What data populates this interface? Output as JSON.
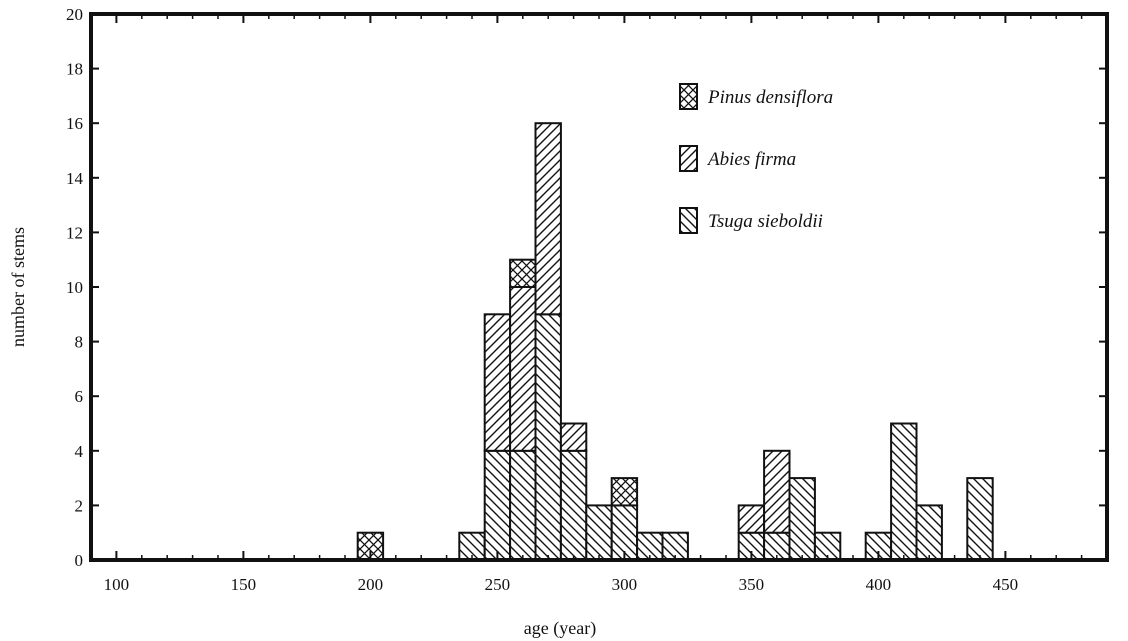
{
  "chart_data": {
    "type": "bar",
    "stacked": true,
    "title": "",
    "xlabel": "age (year)",
    "ylabel": "number of stems",
    "xlim": [
      90,
      490
    ],
    "ylim": [
      0,
      20
    ],
    "bin_width": 10,
    "x_ticks": [
      100,
      150,
      200,
      250,
      300,
      350,
      400,
      450
    ],
    "y_ticks": [
      0,
      2,
      4,
      6,
      8,
      10,
      12,
      14,
      16,
      18,
      20
    ],
    "grid": false,
    "legend_position": "top-right",
    "x": [
      200,
      240,
      250,
      260,
      270,
      280,
      290,
      300,
      310,
      320,
      350,
      360,
      370,
      380,
      400,
      410,
      420,
      440
    ],
    "series": [
      {
        "name": "Tsuga sieboldii",
        "pattern": "backslash-hatch",
        "values": [
          0,
          1,
          4,
          4,
          9,
          4,
          2,
          2,
          1,
          1,
          1,
          1,
          3,
          1,
          1,
          5,
          2,
          3
        ]
      },
      {
        "name": "Abies firma",
        "pattern": "slash-hatch",
        "values": [
          0,
          0,
          5,
          6,
          7,
          1,
          0,
          0,
          0,
          0,
          1,
          3,
          0,
          0,
          0,
          0,
          0,
          0
        ]
      },
      {
        "name": "Pinus densiflora",
        "pattern": "cross-hatch",
        "values": [
          1,
          0,
          0,
          1,
          0,
          0,
          0,
          1,
          0,
          0,
          0,
          0,
          0,
          0,
          0,
          0,
          0,
          0
        ]
      }
    ],
    "legend": [
      "Pinus densiflora",
      "Abies firma",
      "Tsuga sieboldii"
    ],
    "colors": {
      "ink": "#111111",
      "background": "#ffffff"
    }
  }
}
